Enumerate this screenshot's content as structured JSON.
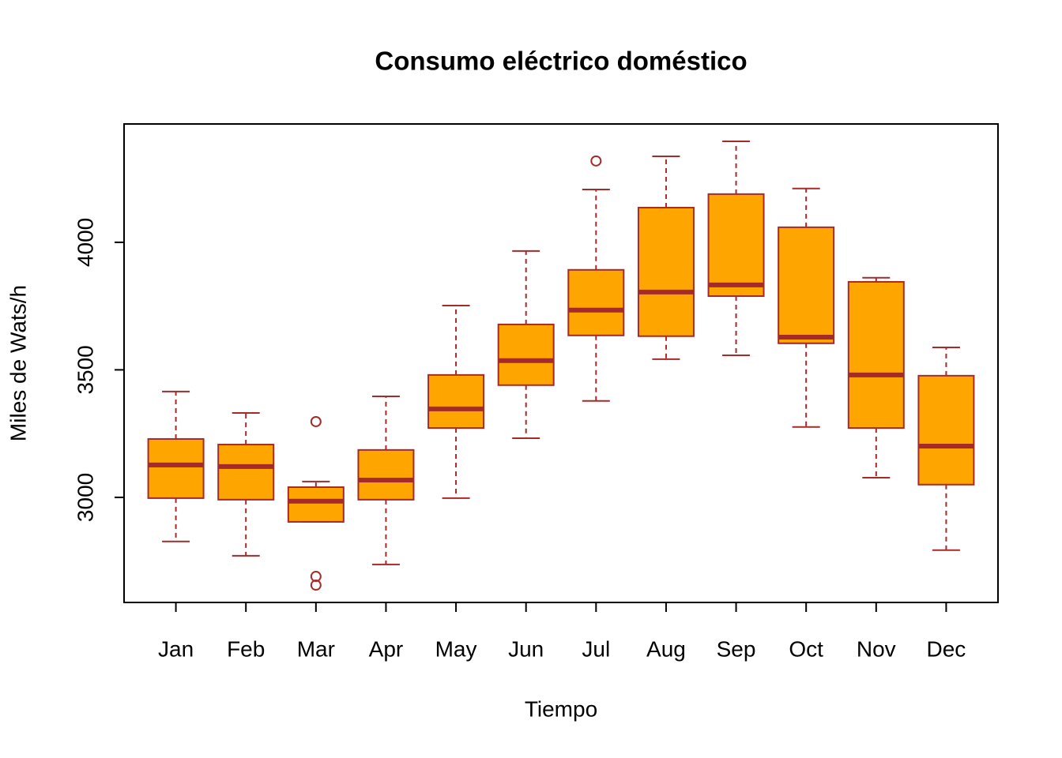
{
  "chart_data": {
    "type": "boxplot",
    "title": "Consumo eléctrico doméstico",
    "x_label": "Tiempo",
    "y_label": "Miles de Wats/h",
    "categories": [
      "Jan",
      "Feb",
      "Mar",
      "Apr",
      "May",
      "Jun",
      "Jul",
      "Aug",
      "Sep",
      "Oct",
      "Nov",
      "Dec"
    ],
    "min": [
      2827,
      2771,
      2904,
      2737,
      2997,
      3232,
      3378,
      3542,
      3557,
      3276,
      3077,
      2793
    ],
    "q1": [
      2997,
      2991,
      2904,
      2991,
      3272,
      3440,
      3635,
      3632,
      3789,
      3604,
      3272,
      3050
    ],
    "median": [
      3127,
      3121,
      2985,
      3068,
      3347,
      3536,
      3734,
      3805,
      3833,
      3628,
      3480,
      3201
    ],
    "q3": [
      3229,
      3207,
      3040,
      3186,
      3480,
      3678,
      3892,
      4136,
      4189,
      4059,
      3845,
      3477
    ],
    "max": [
      3415,
      3331,
      3062,
      3396,
      3752,
      3966,
      4207,
      4337,
      4396,
      4211,
      3861,
      3588
    ],
    "outliers": [
      [],
      [],
      [
        3297,
        2690,
        2656
      ],
      [],
      [],
      [],
      [
        4319
      ],
      [],
      [],
      [],
      [],
      []
    ],
    "fill_color": "#FFA500",
    "line_color": "#A52A2A",
    "ylim": [
      2588,
      4464
    ],
    "yticks": [
      3000,
      3500,
      4000
    ]
  }
}
